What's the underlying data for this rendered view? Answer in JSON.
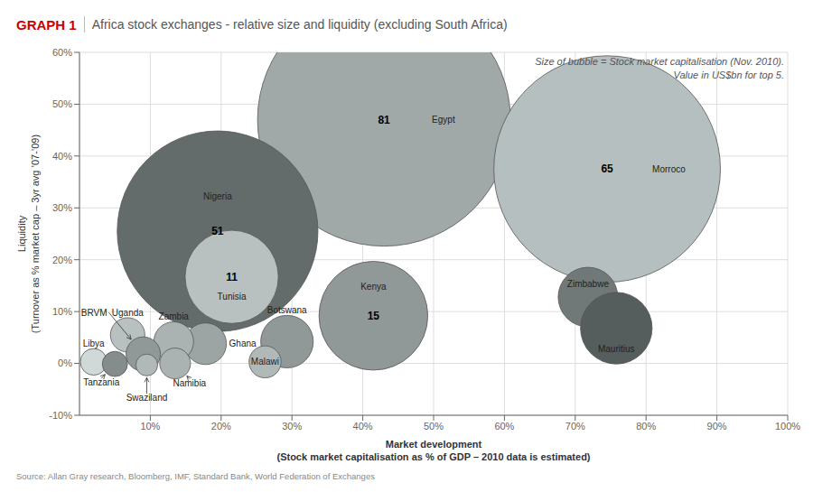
{
  "chart_data": {
    "type": "scatter",
    "title": "GRAPH 1",
    "subtitle": " Africa stock exchanges - relative size and liquidity (excluding South Africa)",
    "x_label": "Market development\n(Stock market capitalisation as % of GDP – 2010 data is estimated)",
    "y_label": "Liquidity\n(Turnover as % market cap – 3yr avg ’07-’09)",
    "annotations": [
      "Size of bubble = Stock market capitalisation (Nov. 2010).\nValue in US$bn for top 5.",
      "Source: Allan Gray research, Bloomberg, IMF, Standard Bank, World Federation of Exchanges"
    ],
    "labels": [
      "Egypt",
      "Morroco",
      "Nigeria",
      "Tunisia",
      "Kenya",
      "Zimbabwe",
      "Mauritius",
      "Ghana",
      "Botswana",
      "Zambia",
      "Uganda",
      "Malawi",
      "Libya",
      "BRVM",
      "Tanzania",
      "Swaziland",
      "Namibia"
    ],
    "x": [
      0.43,
      0.745,
      0.195,
      0.215,
      0.415,
      0.718,
      0.758,
      0.178,
      0.293,
      0.133,
      0.068,
      0.262,
      0.02,
      0.09,
      0.05,
      0.095,
      0.135
    ],
    "values": [
      0.47,
      0.375,
      0.255,
      0.167,
      0.092,
      0.128,
      0.068,
      0.038,
      0.042,
      0.042,
      0.055,
      0.003,
      0.003,
      0.018,
      -0.001,
      -0.003,
      0.0
    ],
    "sizes": [
      81,
      65,
      51,
      11,
      15,
      4.5,
      6.5,
      2.2,
      3.5,
      2.0,
      1.5,
      1.3,
      0.9,
      1.5,
      0.8,
      0.6,
      1.2
    ],
    "size_labels": [
      81,
      65,
      51,
      11,
      15,
      null,
      null,
      null,
      null,
      null,
      null,
      null,
      null,
      null,
      null,
      null,
      null
    ],
    "colors": [
      "#a0a8a8",
      "#b5bfbf",
      "#636b6b",
      "#b8c0c0",
      "#909898",
      "#707878",
      "#555d5d",
      "#9ca4a4",
      "#909898",
      "#aab2b2",
      "#b8c0c0",
      "#b0b8b8",
      "#d0d8d8",
      "#909898",
      "#848c8c",
      "#b0b8b8",
      "#aab2b2"
    ],
    "xlim": [
      0,
      1.0
    ],
    "ylim": [
      -0.1,
      0.6
    ],
    "xticks": [
      {
        "value": 0.1,
        "label": "10%"
      },
      {
        "value": 0.2,
        "label": "20%"
      },
      {
        "value": 0.3,
        "label": "30%"
      },
      {
        "value": 0.4,
        "label": "40%"
      },
      {
        "value": 0.5,
        "label": "50%"
      },
      {
        "value": 0.6,
        "label": "60%"
      },
      {
        "value": 0.7,
        "label": "70%"
      },
      {
        "value": 0.8,
        "label": "80%"
      },
      {
        "value": 0.9,
        "label": "90%"
      },
      {
        "value": 1.0,
        "label": "100%"
      }
    ],
    "yticks": [
      {
        "value": -0.1,
        "label": "-10%"
      },
      {
        "value": 0.0,
        "label": "0%"
      },
      {
        "value": 0.1,
        "label": "10%"
      },
      {
        "value": 0.2,
        "label": "20%"
      },
      {
        "value": 0.3,
        "label": "30%"
      },
      {
        "value": 0.4,
        "label": "40%"
      },
      {
        "value": 0.5,
        "label": "50%"
      },
      {
        "value": 0.6,
        "label": "60%"
      }
    ],
    "grid": true
  }
}
